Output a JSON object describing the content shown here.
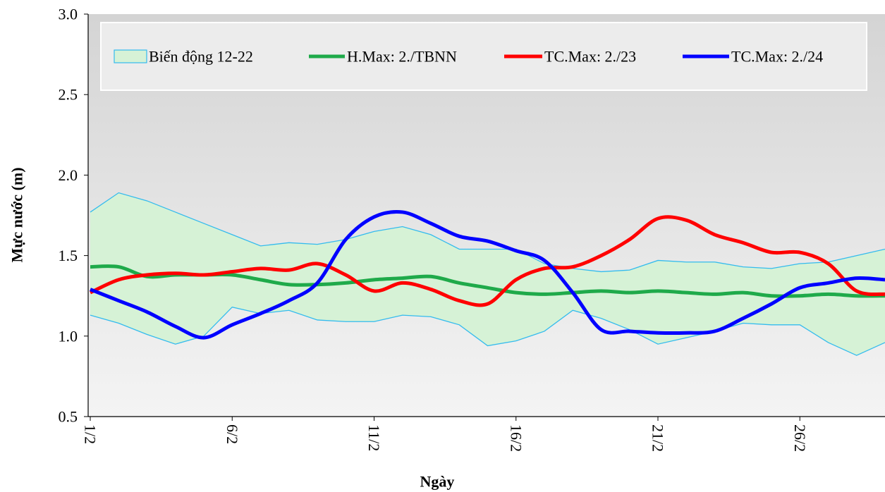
{
  "chart_data": {
    "type": "line",
    "xlabel": "Ngày",
    "ylabel": "Mực nước (m)",
    "categories": [
      "1/2",
      null,
      null,
      null,
      null,
      "6/2",
      null,
      null,
      null,
      null,
      "11/2",
      null,
      null,
      null,
      null,
      "16/2",
      null,
      null,
      null,
      null,
      "21/2",
      null,
      null,
      null,
      null,
      "26/2",
      null,
      null,
      null
    ],
    "ylim": [
      0.5,
      3.0
    ],
    "yticks": [
      0.5,
      {
        "value": 1,
        "label": "1.0"
      },
      1.5,
      {
        "value": 2,
        "label": "2.0"
      },
      2.5,
      {
        "value": 3,
        "label": "3.0"
      }
    ],
    "band": {
      "name": "Biến động 12-22",
      "color": "#33bbee",
      "fill": "#d6f2d6",
      "upper": [
        1.77,
        1.89,
        1.84,
        1.77,
        1.7,
        1.63,
        1.56,
        1.58,
        1.57,
        1.6,
        1.65,
        1.68,
        1.63,
        1.54,
        1.54,
        1.54,
        1.45,
        1.42,
        1.4,
        1.41,
        1.47,
        1.46,
        1.46,
        1.43,
        1.42,
        1.45,
        1.46,
        1.5,
        1.54
      ],
      "lower": [
        1.13,
        1.08,
        1.01,
        0.95,
        1.0,
        1.18,
        1.14,
        1.16,
        1.1,
        1.09,
        1.09,
        1.13,
        1.12,
        1.07,
        0.94,
        0.97,
        1.03,
        1.16,
        1.11,
        1.04,
        0.95,
        0.99,
        1.03,
        1.08,
        1.07,
        1.07,
        0.96,
        0.88,
        0.96
      ]
    },
    "series": [
      {
        "name": "H.Max: 2./TBNN",
        "color": "#1faa4a",
        "values": [
          1.43,
          1.43,
          1.37,
          1.38,
          1.38,
          1.38,
          1.35,
          1.32,
          1.32,
          1.33,
          1.35,
          1.36,
          1.37,
          1.33,
          1.3,
          1.27,
          1.26,
          1.27,
          1.28,
          1.27,
          1.28,
          1.27,
          1.26,
          1.27,
          1.25,
          1.25,
          1.26,
          1.25,
          1.25
        ]
      },
      {
        "name": "TC.Max: 2./23",
        "color": "#ff0000",
        "values": [
          1.27,
          1.35,
          1.38,
          1.39,
          1.38,
          1.4,
          1.42,
          1.41,
          1.45,
          1.38,
          1.28,
          1.33,
          1.29,
          1.22,
          1.2,
          1.35,
          1.42,
          1.43,
          1.5,
          1.6,
          1.73,
          1.72,
          1.63,
          1.58,
          1.52,
          1.52,
          1.45,
          1.28,
          1.26
        ]
      },
      {
        "name": "TC.Max: 2./24",
        "color": "#0000ff",
        "values": [
          1.29,
          1.22,
          1.15,
          1.06,
          0.99,
          1.07,
          1.14,
          1.22,
          1.33,
          1.6,
          1.74,
          1.77,
          1.7,
          1.62,
          1.59,
          1.53,
          1.47,
          1.27,
          1.04,
          1.03,
          1.02,
          1.02,
          1.03,
          1.11,
          1.2,
          1.3,
          1.33,
          1.36,
          1.35
        ]
      }
    ]
  }
}
